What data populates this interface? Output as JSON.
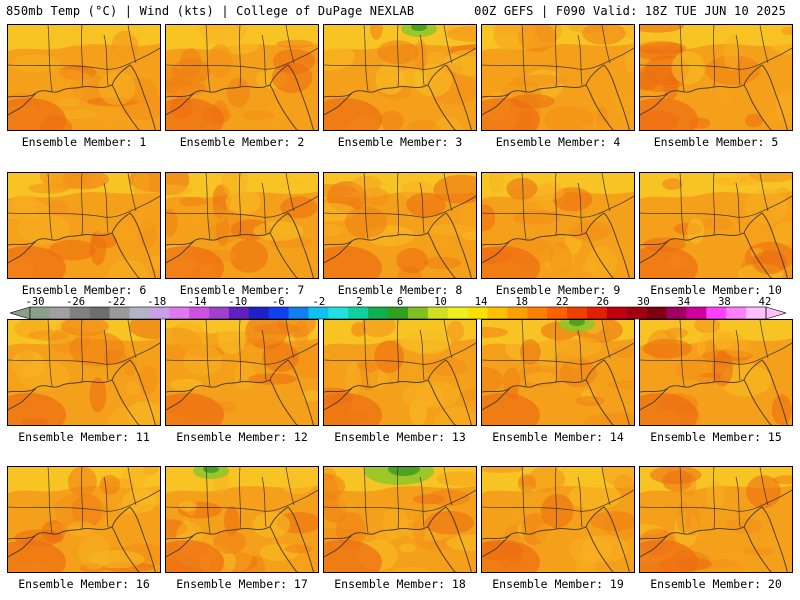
{
  "header": {
    "left": "850mb Temp (°C) | Wind (kts) | College of DuPage NEXLAB",
    "right": "00Z GEFS | F090 Valid: 18Z TUE JUN 10 2025"
  },
  "panels": [
    {
      "label": "Ensemble Member: 1",
      "green": false
    },
    {
      "label": "Ensemble Member: 2",
      "green": false
    },
    {
      "label": "Ensemble Member: 3",
      "green": true
    },
    {
      "label": "Ensemble Member: 4",
      "green": false
    },
    {
      "label": "Ensemble Member: 5",
      "green": false
    },
    {
      "label": "Ensemble Member: 6",
      "green": false
    },
    {
      "label": "Ensemble Member: 7",
      "green": false
    },
    {
      "label": "Ensemble Member: 8",
      "green": false
    },
    {
      "label": "Ensemble Member: 9",
      "green": false
    },
    {
      "label": "Ensemble Member: 10",
      "green": false
    },
    {
      "label": "Ensemble Member: 11",
      "green": false
    },
    {
      "label": "Ensemble Member: 12",
      "green": false
    },
    {
      "label": "Ensemble Member: 13",
      "green": false
    },
    {
      "label": "Ensemble Member: 14",
      "green": true
    },
    {
      "label": "Ensemble Member: 15",
      "green": false
    },
    {
      "label": "Ensemble Member: 16",
      "green": false
    },
    {
      "label": "Ensemble Member: 17",
      "green": true
    },
    {
      "label": "Ensemble Member: 18",
      "green": true
    },
    {
      "label": "Ensemble Member: 19",
      "green": false
    },
    {
      "label": "Ensemble Member: 20",
      "green": false
    }
  ],
  "colorbar": {
    "ticks": [
      "-30",
      "-26",
      "-22",
      "-18",
      "-14",
      "-10",
      "-6",
      "-2",
      "2",
      "6",
      "10",
      "14",
      "18",
      "22",
      "26",
      "30",
      "34",
      "38",
      "42"
    ],
    "colors": [
      "#8aa08a",
      "#a0a0a0",
      "#808080",
      "#6e6e6e",
      "#9a9a9a",
      "#b4b4c8",
      "#c8a0e6",
      "#e078f0",
      "#d050e0",
      "#a040d0",
      "#6020c0",
      "#2020c8",
      "#1040f0",
      "#1080f0",
      "#10c0f0",
      "#20e0e0",
      "#10d0a0",
      "#10b050",
      "#30a020",
      "#80c020",
      "#d0e020",
      "#f0f020",
      "#ffe000",
      "#ffc000",
      "#ffa000",
      "#ff8000",
      "#ff6000",
      "#f04000",
      "#e02000",
      "#c00010",
      "#a00010",
      "#800010",
      "#a00060",
      "#d000a0",
      "#ff40ff",
      "#ff80ff",
      "#ffc0ff"
    ]
  }
}
